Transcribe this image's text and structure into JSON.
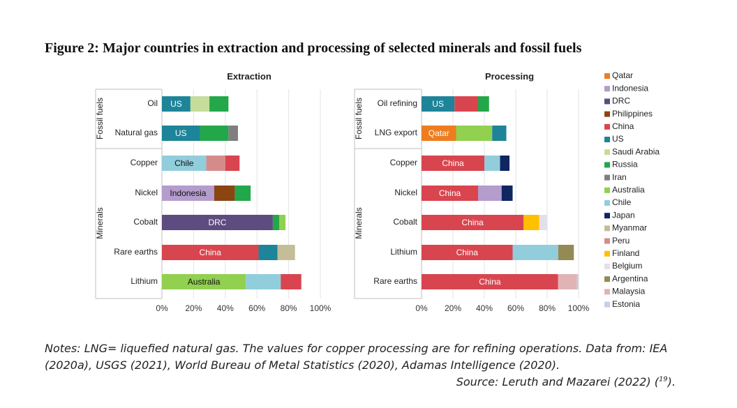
{
  "figure_title": "Figure 2: Major countries in extraction and processing of selected minerals and fossil fuels",
  "notes": "Notes: LNG= liquefied natural gas. The values for copper processing are for refining operations. Data from: IEA (2020a), USGS (2021), World Bureau of Metal Statistics (2020), Adamas Intelligence (2020).",
  "source": {
    "text": "Source: Leruth and Mazarei (2022) (",
    "ref": "19",
    "close": ")."
  },
  "colors": {
    "Qatar": "#ed7d1f",
    "Indonesia": "#b49ccc",
    "DRC": "#5e4b80",
    "Philippines": "#8b4513",
    "China": "#d9454f",
    "US": "#1e8499",
    "Saudi Arabia": "#c6dc9a",
    "Russia": "#22a84a",
    "Iran": "#7f7f7f",
    "Australia": "#92d050",
    "Chile": "#92cddc",
    "Japan": "#0f2660",
    "Myanmar": "#c4bd97",
    "Peru": "#d68b8b",
    "Finland": "#ffc000",
    "Belgium": "#e6dfea",
    "Argentina": "#948a54",
    "Malaysia": "#e0b4b4",
    "Estonia": "#c5cfe6"
  },
  "chart_data": [
    {
      "type": "bar",
      "orientation": "horizontal",
      "stacked": true,
      "title": "Extraction",
      "xlim": [
        0,
        100
      ],
      "x_ticks": [
        "0%",
        "20%",
        "40%",
        "60%",
        "80%",
        "100%"
      ],
      "groups": [
        {
          "label": "Fossil fuels",
          "categories": [
            "Oil",
            "Natural gas"
          ]
        },
        {
          "label": "Minerals",
          "categories": [
            "Copper",
            "Nickel",
            "Cobalt",
            "Rare earths",
            "Lithium"
          ]
        }
      ],
      "bars": [
        {
          "category": "Oil",
          "segments": [
            {
              "country": "US",
              "value": 18,
              "label": "US"
            },
            {
              "country": "Saudi Arabia",
              "value": 12
            },
            {
              "country": "Russia",
              "value": 12
            }
          ]
        },
        {
          "category": "Natural gas",
          "segments": [
            {
              "country": "US",
              "value": 24,
              "label": "US"
            },
            {
              "country": "Russia",
              "value": 18
            },
            {
              "country": "Iran",
              "value": 6
            }
          ]
        },
        {
          "category": "Copper",
          "segments": [
            {
              "country": "Chile",
              "value": 28,
              "label": "Chile"
            },
            {
              "country": "Peru",
              "value": 12
            },
            {
              "country": "China",
              "value": 9
            }
          ]
        },
        {
          "category": "Nickel",
          "segments": [
            {
              "country": "Indonesia",
              "value": 33,
              "label": "Indonesia"
            },
            {
              "country": "Philippines",
              "value": 13
            },
            {
              "country": "Russia",
              "value": 10
            }
          ]
        },
        {
          "category": "Cobalt",
          "segments": [
            {
              "country": "DRC",
              "value": 70,
              "label": "DRC"
            },
            {
              "country": "Russia",
              "value": 4
            },
            {
              "country": "Australia",
              "value": 4
            }
          ]
        },
        {
          "category": "Rare earths",
          "segments": [
            {
              "country": "China",
              "value": 61,
              "label": "China"
            },
            {
              "country": "US",
              "value": 12
            },
            {
              "country": "Myanmar",
              "value": 11
            }
          ]
        },
        {
          "category": "Lithium",
          "segments": [
            {
              "country": "Australia",
              "value": 53,
              "label": "Australia"
            },
            {
              "country": "Chile",
              "value": 22
            },
            {
              "country": "China",
              "value": 13
            }
          ]
        }
      ]
    },
    {
      "type": "bar",
      "orientation": "horizontal",
      "stacked": true,
      "title": "Processing",
      "xlim": [
        0,
        100
      ],
      "x_ticks": [
        "0%",
        "20%",
        "40%",
        "60%",
        "80%",
        "100%"
      ],
      "groups": [
        {
          "label": "Fossil fuels",
          "categories": [
            "Oil refining",
            "LNG export"
          ]
        },
        {
          "label": "Minerals",
          "categories": [
            "Copper",
            "Nickel",
            "Cobalt",
            "Lithium",
            "Rare earths"
          ]
        }
      ],
      "bars": [
        {
          "category": "Oil refining",
          "segments": [
            {
              "country": "US",
              "value": 21,
              "label": "US"
            },
            {
              "country": "China",
              "value": 15
            },
            {
              "country": "Russia",
              "value": 7
            }
          ]
        },
        {
          "category": "LNG export",
          "segments": [
            {
              "country": "Qatar",
              "value": 22,
              "label": "Qatar"
            },
            {
              "country": "Australia",
              "value": 23
            },
            {
              "country": "US",
              "value": 9
            }
          ]
        },
        {
          "category": "Copper",
          "segments": [
            {
              "country": "China",
              "value": 40,
              "label": "China"
            },
            {
              "country": "Chile",
              "value": 10
            },
            {
              "country": "Japan",
              "value": 6
            }
          ]
        },
        {
          "category": "Nickel",
          "segments": [
            {
              "country": "China",
              "value": 36,
              "label": "China"
            },
            {
              "country": "Indonesia",
              "value": 15
            },
            {
              "country": "Japan",
              "value": 7
            }
          ]
        },
        {
          "category": "Cobalt",
          "segments": [
            {
              "country": "China",
              "value": 65,
              "label": "China"
            },
            {
              "country": "Finland",
              "value": 10
            },
            {
              "country": "Belgium",
              "value": 5
            }
          ]
        },
        {
          "category": "Lithium",
          "segments": [
            {
              "country": "China",
              "value": 58,
              "label": "China"
            },
            {
              "country": "Chile",
              "value": 29
            },
            {
              "country": "Argentina",
              "value": 10
            }
          ]
        },
        {
          "category": "Rare earths",
          "segments": [
            {
              "country": "China",
              "value": 87,
              "label": "China"
            },
            {
              "country": "Malaysia",
              "value": 12
            },
            {
              "country": "Estonia",
              "value": 1
            }
          ]
        }
      ]
    }
  ],
  "legend": [
    "Qatar",
    "Indonesia",
    "DRC",
    "Philippines",
    "China",
    "US",
    "Saudi Arabia",
    "Russia",
    "Iran",
    "Australia",
    "Chile",
    "Japan",
    "Myanmar",
    "Peru",
    "Finland",
    "Belgium",
    "Argentina",
    "Malaysia",
    "Estonia"
  ]
}
